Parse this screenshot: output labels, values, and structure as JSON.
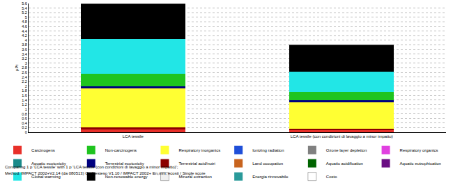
{
  "chart_data": {
    "type": "bar",
    "stacked": true,
    "grid": true,
    "legend": "bottom",
    "y_label": "µPt",
    "categories": [
      "LCA tessile",
      "LCA tessile (con condizioni di lavaggio a minor impatto)"
    ],
    "ylim": [
      0,
      5.6
    ],
    "yticks": [
      0,
      0.2,
      0.4,
      0.6,
      0.8,
      1,
      1.2,
      1.4,
      1.6,
      1.8,
      2,
      2.2,
      2.4,
      2.6,
      2.8,
      3,
      3.2,
      3.4,
      3.6,
      3.8,
      4,
      4.2,
      4.4,
      4.6,
      4.8,
      5,
      5.2,
      5.4,
      5.6
    ],
    "series": [
      {
        "name": "Carcinogens",
        "color": "#e8302a",
        "values": [
          0.15,
          0.12
        ]
      },
      {
        "name": "Non-carcinogens",
        "color": "#1fc41f",
        "values": [
          0.55,
          0.35
        ]
      },
      {
        "name": "Respiratory inorganics",
        "color": "#ffff33",
        "values": [
          1.7,
          1.14
        ]
      },
      {
        "name": "Ionizing radiation",
        "color": "#1f4fd8",
        "values": [
          0,
          0
        ]
      },
      {
        "name": "Ozone layer depletion",
        "color": "#808080",
        "values": [
          0,
          0
        ]
      },
      {
        "name": "Respiratory organics",
        "color": "#e040e0",
        "values": [
          0,
          0
        ]
      },
      {
        "name": "Aquatic ecotoxicity",
        "color": "#1a8a8a",
        "values": [
          0,
          0
        ]
      },
      {
        "name": "Terrestrial ecotoxicity",
        "color": "#000080",
        "values": [
          0.1,
          0.1
        ]
      },
      {
        "name": "Terrestrial acid/nutri",
        "color": "#8b0000",
        "values": [
          0.05,
          0.04
        ]
      },
      {
        "name": "Land occupation",
        "color": "#c8641e",
        "values": [
          0,
          0
        ]
      },
      {
        "name": "Aquatic acidification",
        "color": "#006400",
        "values": [
          0,
          0
        ]
      },
      {
        "name": "Aquatic eutrophication",
        "color": "#6a0d83",
        "values": [
          0,
          0
        ]
      },
      {
        "name": "Global warming",
        "color": "#22e6e6",
        "values": [
          1.5,
          0.87
        ]
      },
      {
        "name": "Non-renewable energy",
        "color": "#000000",
        "values": [
          1.55,
          1.18
        ]
      },
      {
        "name": "Mineral extraction",
        "color": "#f0f0f0",
        "values": [
          0,
          0
        ]
      },
      {
        "name": "Energia rinnovabile",
        "color": "#2a9a9a",
        "values": [
          0,
          0
        ]
      },
      {
        "name": "Costo",
        "color": "#ffffff",
        "values": [
          0,
          0
        ]
      }
    ],
    "annotations": [
      "Comparing 1 p 'LCA tessile' with 1 p 'LCA tessile (con condizioni di lavaggio a minor impatto)';",
      "Method: IMPACT 2002+V2.14 (da 080513) Cedi esteso V1.10 / IMPACT 2002+ En,mm. ecosti / Single score"
    ]
  }
}
